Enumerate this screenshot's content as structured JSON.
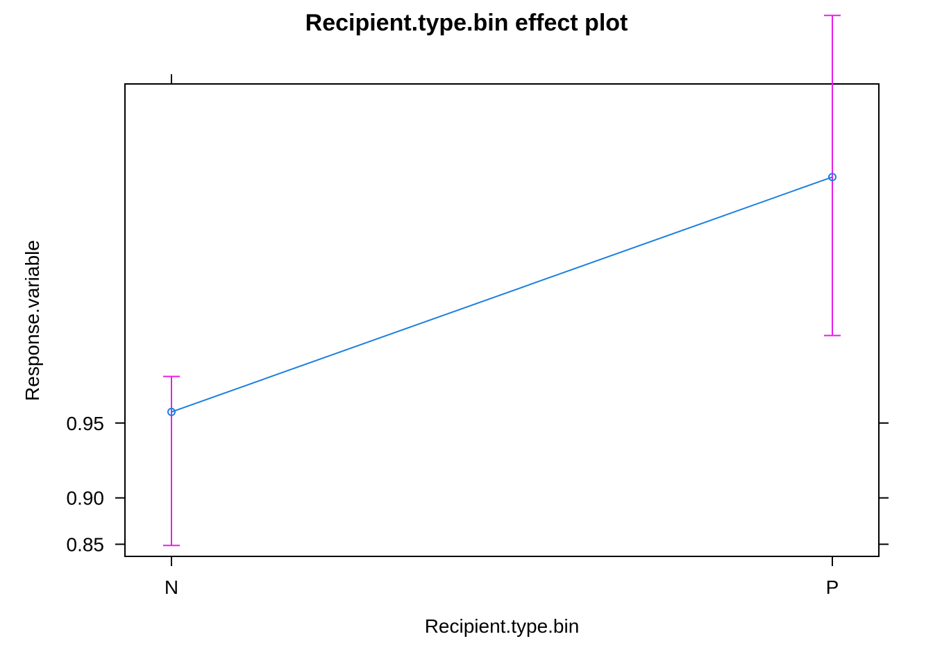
{
  "chart_data": {
    "type": "line",
    "title": "Recipient.type.bin effect plot",
    "xlabel": "Recipient.type.bin",
    "ylabel": "Response.variable",
    "categories": [
      "N",
      "P"
    ],
    "series": [
      {
        "values": [
          0.955,
          0.9955
        ],
        "lower": [
          0.8485,
          0.9785
        ],
        "upper": [
          0.968,
          0.9991
        ],
        "line_color": "#1a7fe0",
        "ci_color": "#e81ee8"
      }
    ],
    "y_ticks": [
      0.85,
      0.9,
      0.95
    ],
    "y_tick_labels": [
      "0.85",
      "0.90",
      "0.95"
    ],
    "y_scale": "logit",
    "grid": false,
    "legend": "none"
  }
}
